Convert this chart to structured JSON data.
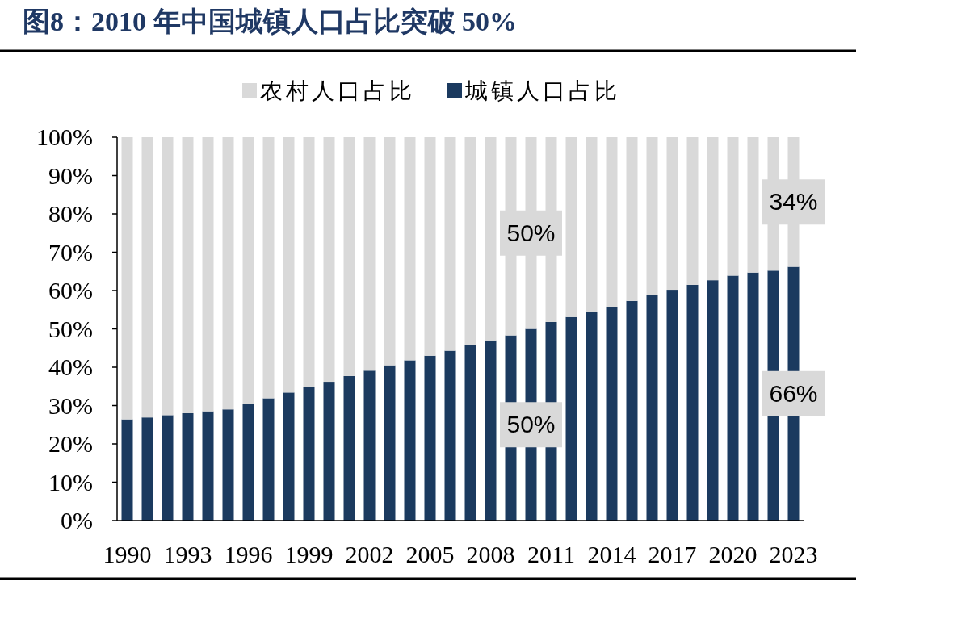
{
  "chart_data": {
    "type": "bar",
    "stacked": true,
    "title": "图8：2010 年中国城镇人口占比突破 50%",
    "categories": [
      "1990",
      null,
      null,
      "1993",
      null,
      null,
      "1996",
      null,
      null,
      "1999",
      null,
      null,
      "2002",
      null,
      null,
      "2005",
      null,
      null,
      "2008",
      null,
      null,
      "2011",
      null,
      null,
      "2014",
      null,
      null,
      "2017",
      null,
      null,
      "2020",
      null,
      null,
      "2023"
    ],
    "series": [
      {
        "name": "城镇人口占比",
        "color": "#1b3a5f",
        "values": [
          26.4,
          26.9,
          27.5,
          28.0,
          28.5,
          29.0,
          30.5,
          31.9,
          33.4,
          34.8,
          36.2,
          37.7,
          39.1,
          40.5,
          41.8,
          43.0,
          44.3,
          45.9,
          47.0,
          48.3,
          50.0,
          51.8,
          53.1,
          54.5,
          55.8,
          57.3,
          58.8,
          60.2,
          61.5,
          62.7,
          63.9,
          64.7,
          65.2,
          66.2
        ],
        "value_labels": [
          null,
          null,
          null,
          null,
          null,
          null,
          null,
          null,
          null,
          null,
          null,
          null,
          null,
          null,
          null,
          null,
          null,
          null,
          null,
          null,
          "50%",
          null,
          null,
          null,
          null,
          null,
          null,
          null,
          null,
          null,
          null,
          null,
          null,
          "66%"
        ]
      },
      {
        "name": "农村人口占比",
        "color": "#d9d9d9",
        "values": [
          73.6,
          73.1,
          72.5,
          72.0,
          71.5,
          71.0,
          69.5,
          68.1,
          66.6,
          65.2,
          63.8,
          62.3,
          60.9,
          59.5,
          58.2,
          57.0,
          55.7,
          54.1,
          53.0,
          51.7,
          50.0,
          48.2,
          46.9,
          45.5,
          44.2,
          42.7,
          41.2,
          39.8,
          38.5,
          37.3,
          36.1,
          35.3,
          34.8,
          33.8
        ],
        "value_labels": [
          null,
          null,
          null,
          null,
          null,
          null,
          null,
          null,
          null,
          null,
          null,
          null,
          null,
          null,
          null,
          null,
          null,
          null,
          null,
          null,
          "50%",
          null,
          null,
          null,
          null,
          null,
          null,
          null,
          null,
          null,
          null,
          null,
          null,
          "34%"
        ]
      }
    ],
    "ylim": [
      0,
      100
    ],
    "yticks": [
      {
        "value": 0,
        "label": "0%"
      },
      {
        "value": 10,
        "label": "10%"
      },
      {
        "value": 20,
        "label": "20%"
      },
      {
        "value": 30,
        "label": "30%"
      },
      {
        "value": 40,
        "label": "40%"
      },
      {
        "value": 50,
        "label": "50%"
      },
      {
        "value": 60,
        "label": "60%"
      },
      {
        "value": 70,
        "label": "70%"
      },
      {
        "value": 80,
        "label": "80%"
      },
      {
        "value": 90,
        "label": "90%"
      },
      {
        "value": 100,
        "label": "100%"
      }
    ],
    "legend": "top"
  }
}
